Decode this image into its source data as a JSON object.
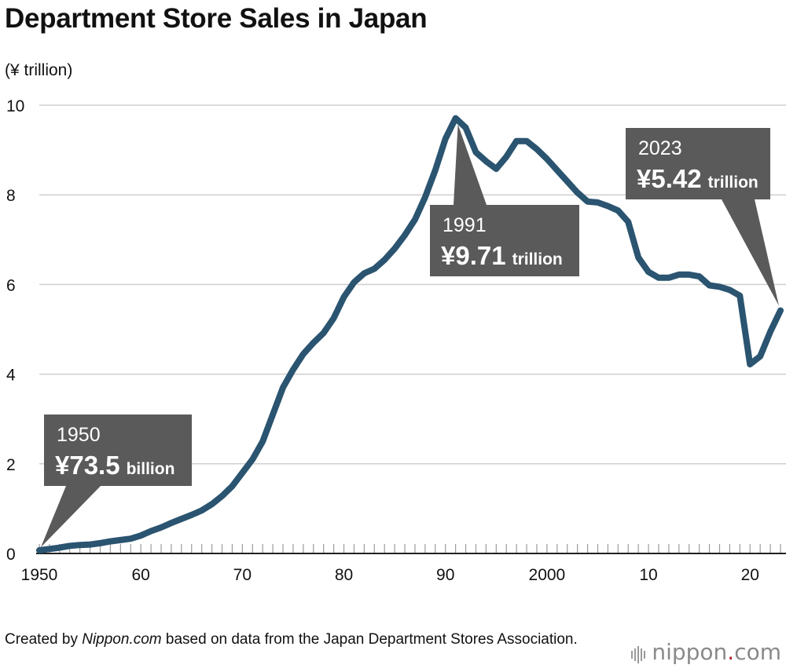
{
  "title": "Department Store Sales in Japan",
  "chart_data": {
    "type": "line",
    "title": "Department Store Sales in Japan",
    "ylabel": "(¥ trillion)",
    "xlabel": "",
    "xlim": [
      1950,
      2023
    ],
    "ylim": [
      0,
      10
    ],
    "yticks": [
      0,
      2,
      4,
      6,
      8,
      10
    ],
    "xticks": [
      {
        "year": 1950,
        "label": "1950"
      },
      {
        "year": 1960,
        "label": "60"
      },
      {
        "year": 1970,
        "label": "70"
      },
      {
        "year": 1980,
        "label": "80"
      },
      {
        "year": 1990,
        "label": "90"
      },
      {
        "year": 2000,
        "label": "2000"
      },
      {
        "year": 2010,
        "label": "10"
      },
      {
        "year": 2020,
        "label": "20"
      }
    ],
    "grid": true,
    "series": [
      {
        "name": "Department store sales",
        "color": "#2a5470",
        "x": [
          1950,
          1951,
          1952,
          1953,
          1954,
          1955,
          1956,
          1957,
          1958,
          1959,
          1960,
          1961,
          1962,
          1963,
          1964,
          1965,
          1966,
          1967,
          1968,
          1969,
          1970,
          1971,
          1972,
          1973,
          1974,
          1975,
          1976,
          1977,
          1978,
          1979,
          1980,
          1981,
          1982,
          1983,
          1984,
          1985,
          1986,
          1987,
          1988,
          1989,
          1990,
          1991,
          1992,
          1993,
          1994,
          1995,
          1996,
          1997,
          1998,
          1999,
          2000,
          2001,
          2002,
          2003,
          2004,
          2005,
          2006,
          2007,
          2008,
          2009,
          2010,
          2011,
          2012,
          2013,
          2014,
          2015,
          2016,
          2017,
          2018,
          2019,
          2020,
          2021,
          2022,
          2023
        ],
        "values": [
          0.07,
          0.1,
          0.13,
          0.17,
          0.19,
          0.2,
          0.23,
          0.27,
          0.3,
          0.33,
          0.4,
          0.5,
          0.58,
          0.68,
          0.77,
          0.86,
          0.96,
          1.1,
          1.28,
          1.5,
          1.8,
          2.1,
          2.5,
          3.1,
          3.7,
          4.1,
          4.45,
          4.7,
          4.92,
          5.25,
          5.72,
          6.05,
          6.25,
          6.35,
          6.55,
          6.8,
          7.1,
          7.45,
          7.95,
          8.55,
          9.25,
          9.71,
          9.5,
          8.95,
          8.75,
          8.58,
          8.85,
          9.2,
          9.2,
          9.02,
          8.8,
          8.55,
          8.3,
          8.05,
          7.85,
          7.83,
          7.75,
          7.65,
          7.4,
          6.6,
          6.28,
          6.15,
          6.15,
          6.22,
          6.22,
          6.18,
          5.98,
          5.95,
          5.88,
          5.75,
          4.22,
          4.4,
          4.95,
          5.42
        ]
      }
    ],
    "annotations": [
      {
        "year": 1950,
        "value": 0.07,
        "year_label": "1950",
        "amount": "¥73.5",
        "unit": "billion",
        "pointer": "bottom-left"
      },
      {
        "year": 1991,
        "value": 9.71,
        "year_label": "1991",
        "amount": "¥9.71",
        "unit": "trillion",
        "pointer": "top-center"
      },
      {
        "year": 2023,
        "value": 5.42,
        "year_label": "2023",
        "amount": "¥5.42",
        "unit": "trillion",
        "pointer": "bottom-right"
      }
    ]
  },
  "source": {
    "prefix": "Created by ",
    "site": "Nippon.com",
    "suffix": " based on data from the Japan Department Stores Association."
  },
  "logo": {
    "name": "nippon",
    "dot": ".",
    "tld": "com"
  },
  "colors": {
    "line": "#2a5470",
    "callout": "#5a5a5a",
    "grid": "#cfcfcf",
    "axis": "#222222",
    "logo_dot": "#b11f24"
  }
}
